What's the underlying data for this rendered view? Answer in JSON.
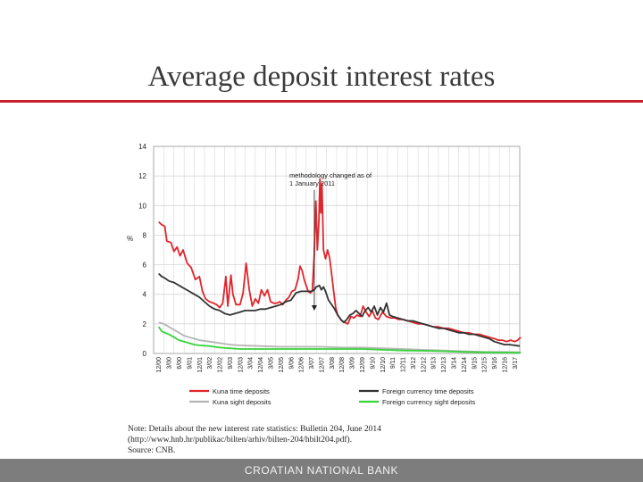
{
  "slide": {
    "title": "Average deposit interest rates",
    "footer": "CROATIAN NATIONAL BANK",
    "note_lines": [
      "Note: Details about the new interest rate statistics: Bulletin 204, June 2014",
      "(http://www.hnb.hr/publikac/bilten/arhiv/bilten-204/hbilt204.pdf).",
      "Source: CNB."
    ]
  },
  "colors": {
    "kuna_time": "#e0262c",
    "foreign_time": "#333333",
    "kuna_sight": "#b5b5b5",
    "foreign_sight": "#35d43a",
    "title_rule": "#c8202b",
    "footer_bar": "#7d7d7d"
  },
  "chart_data": {
    "type": "line",
    "ylabel": "%",
    "ylim": [
      0,
      14
    ],
    "y_ticks": [
      "0",
      "2",
      "4",
      "6",
      "8",
      "10",
      "12",
      "14"
    ],
    "grid": true,
    "x_tick_labels": [
      "12/00",
      "3/00",
      "6/00",
      "9/01",
      "12/01",
      "3/02",
      "12/02",
      "9/03",
      "12/03",
      "3/04",
      "12/04",
      "3/05",
      "12/05",
      "9/06",
      "12/06",
      "3/07",
      "12/07",
      "3/08",
      "12/08",
      "3/09",
      "12/09",
      "9/10",
      "12/10",
      "9/11",
      "12/11",
      "3/12",
      "12/12",
      "9/13",
      "12/13",
      "3/14",
      "12/14",
      "9/15",
      "12/15",
      "9/16",
      "12/16",
      "3/17"
    ],
    "annotation": {
      "lines": [
        "methodology changed as of",
        "1 January 2011"
      ],
      "x_index": 15.3,
      "y": 2.9
    },
    "legend_position": "bottom",
    "series": [
      {
        "name": "Kuna time deposits",
        "color_key": "kuna_time",
        "points": [
          [
            0,
            8.9
          ],
          [
            0.3,
            8.7
          ],
          [
            0.6,
            8.6
          ],
          [
            0.8,
            7.6
          ],
          [
            1.2,
            7.5
          ],
          [
            1.5,
            6.9
          ],
          [
            1.8,
            7.2
          ],
          [
            2.1,
            6.6
          ],
          [
            2.4,
            7
          ],
          [
            2.8,
            6.1
          ],
          [
            3.2,
            5.8
          ],
          [
            3.6,
            5
          ],
          [
            4,
            5.2
          ],
          [
            4.3,
            4.2
          ],
          [
            4.6,
            3.7
          ],
          [
            5,
            3.5
          ],
          [
            5.4,
            3.4
          ],
          [
            5.7,
            3.3
          ],
          [
            6,
            3.1
          ],
          [
            6.3,
            3.4
          ],
          [
            6.6,
            5.2
          ],
          [
            6.8,
            3.2
          ],
          [
            7.1,
            5.3
          ],
          [
            7.3,
            4
          ],
          [
            7.6,
            3.3
          ],
          [
            8,
            3.3
          ],
          [
            8.3,
            4.1
          ],
          [
            8.6,
            6.1
          ],
          [
            8.9,
            4.3
          ],
          [
            9.2,
            3.2
          ],
          [
            9.5,
            3.7
          ],
          [
            9.8,
            3.4
          ],
          [
            10.1,
            4.3
          ],
          [
            10.4,
            3.9
          ],
          [
            10.7,
            4.3
          ],
          [
            11,
            3.5
          ],
          [
            11.3,
            3.4
          ],
          [
            11.6,
            3.4
          ],
          [
            11.9,
            3.5
          ],
          [
            12.2,
            3.3
          ],
          [
            12.5,
            3.6
          ],
          [
            12.8,
            3.8
          ],
          [
            13.1,
            4.2
          ],
          [
            13.4,
            4.3
          ],
          [
            13.7,
            5
          ],
          [
            13.9,
            5.9
          ],
          [
            14.1,
            5.6
          ],
          [
            14.3,
            5
          ],
          [
            14.5,
            4.6
          ],
          [
            14.7,
            4.2
          ],
          [
            14.9,
            4.1
          ],
          [
            15.1,
            4.2
          ],
          [
            15.3,
            6.7
          ],
          [
            15.45,
            10.3
          ],
          [
            15.6,
            7
          ],
          [
            15.75,
            9
          ],
          [
            15.85,
            11.8
          ],
          [
            15.95,
            9.5
          ],
          [
            16.05,
            11.5
          ],
          [
            16.2,
            7
          ],
          [
            16.4,
            6.4
          ],
          [
            16.6,
            7
          ],
          [
            16.8,
            6.5
          ],
          [
            17,
            5.4
          ],
          [
            17.2,
            4.2
          ],
          [
            17.4,
            3.1
          ],
          [
            17.6,
            2.6
          ],
          [
            17.8,
            2.4
          ],
          [
            18,
            2.2
          ],
          [
            18.3,
            2.1
          ],
          [
            18.6,
            2
          ],
          [
            18.9,
            2.5
          ],
          [
            19.2,
            2.4
          ],
          [
            19.5,
            2.6
          ],
          [
            19.8,
            2.5
          ],
          [
            20.1,
            3.2
          ],
          [
            20.4,
            2.8
          ],
          [
            20.7,
            2.5
          ],
          [
            21,
            2.9
          ],
          [
            21.3,
            2.4
          ],
          [
            21.6,
            2.3
          ],
          [
            22,
            2.8
          ],
          [
            22.4,
            2.5
          ],
          [
            22.8,
            2.4
          ],
          [
            23.2,
            2.4
          ],
          [
            23.6,
            2.3
          ],
          [
            24,
            2.3
          ],
          [
            24.5,
            2.2
          ],
          [
            25,
            2.1
          ],
          [
            25.5,
            2
          ],
          [
            26,
            2
          ],
          [
            26.5,
            1.9
          ],
          [
            27,
            1.8
          ],
          [
            27.5,
            1.8
          ],
          [
            28,
            1.7
          ],
          [
            28.5,
            1.7
          ],
          [
            29,
            1.6
          ],
          [
            29.5,
            1.5
          ],
          [
            30,
            1.4
          ],
          [
            30.5,
            1.4
          ],
          [
            31,
            1.3
          ],
          [
            31.5,
            1.3
          ],
          [
            32,
            1.2
          ],
          [
            32.5,
            1.1
          ],
          [
            33,
            1
          ],
          [
            33.4,
            0.9
          ],
          [
            33.8,
            0.9
          ],
          [
            34.2,
            0.8
          ],
          [
            34.6,
            0.9
          ],
          [
            35,
            0.8
          ],
          [
            35.3,
            0.9
          ],
          [
            35.6,
            1.1
          ]
        ]
      },
      {
        "name": "Foreign currency time deposits",
        "color_key": "foreign_time",
        "points": [
          [
            0,
            5.4
          ],
          [
            0.3,
            5.2
          ],
          [
            0.6,
            5.1
          ],
          [
            1,
            4.9
          ],
          [
            1.5,
            4.8
          ],
          [
            2,
            4.6
          ],
          [
            2.5,
            4.4
          ],
          [
            3,
            4.2
          ],
          [
            3.5,
            4
          ],
          [
            4,
            3.8
          ],
          [
            4.5,
            3.5
          ],
          [
            5,
            3.2
          ],
          [
            5.5,
            3
          ],
          [
            6,
            2.9
          ],
          [
            6.5,
            2.7
          ],
          [
            7,
            2.6
          ],
          [
            7.5,
            2.7
          ],
          [
            8,
            2.8
          ],
          [
            8.5,
            2.9
          ],
          [
            9,
            2.9
          ],
          [
            9.5,
            2.9
          ],
          [
            10,
            3
          ],
          [
            10.5,
            3
          ],
          [
            11,
            3.1
          ],
          [
            11.5,
            3.2
          ],
          [
            12,
            3.3
          ],
          [
            12.5,
            3.5
          ],
          [
            13,
            3.6
          ],
          [
            13.5,
            4.1
          ],
          [
            14,
            4.2
          ],
          [
            14.5,
            4.2
          ],
          [
            15,
            4.2
          ],
          [
            15.3,
            4.3
          ],
          [
            15.5,
            4.5
          ],
          [
            15.8,
            4.6
          ],
          [
            16,
            4.3
          ],
          [
            16.2,
            4.5
          ],
          [
            16.4,
            4.2
          ],
          [
            16.7,
            3.6
          ],
          [
            17,
            3.3
          ],
          [
            17.3,
            3
          ],
          [
            17.6,
            2.6
          ],
          [
            17.9,
            2.3
          ],
          [
            18.2,
            2.1
          ],
          [
            18.5,
            2.3
          ],
          [
            18.8,
            2.6
          ],
          [
            19.1,
            2.7
          ],
          [
            19.4,
            2.9
          ],
          [
            19.7,
            2.7
          ],
          [
            20,
            2.5
          ],
          [
            20.3,
            2.9
          ],
          [
            20.6,
            3.1
          ],
          [
            20.9,
            2.8
          ],
          [
            21.2,
            3.2
          ],
          [
            21.5,
            2.6
          ],
          [
            21.8,
            3.1
          ],
          [
            22.1,
            2.8
          ],
          [
            22.4,
            3.4
          ],
          [
            22.7,
            2.6
          ],
          [
            23,
            2.5
          ],
          [
            23.5,
            2.4
          ],
          [
            24,
            2.3
          ],
          [
            24.5,
            2.2
          ],
          [
            25,
            2.2
          ],
          [
            25.5,
            2.1
          ],
          [
            26,
            2
          ],
          [
            26.5,
            1.9
          ],
          [
            27,
            1.8
          ],
          [
            27.5,
            1.7
          ],
          [
            28,
            1.7
          ],
          [
            28.5,
            1.6
          ],
          [
            29,
            1.5
          ],
          [
            29.5,
            1.4
          ],
          [
            30,
            1.4
          ],
          [
            30.5,
            1.3
          ],
          [
            31,
            1.3
          ],
          [
            31.5,
            1.2
          ],
          [
            32,
            1.1
          ],
          [
            32.5,
            1
          ],
          [
            33,
            0.8
          ],
          [
            33.5,
            0.7
          ],
          [
            34,
            0.6
          ],
          [
            34.5,
            0.6
          ],
          [
            35,
            0.55
          ],
          [
            35.5,
            0.5
          ]
        ]
      },
      {
        "name": "Kuna sight deposits",
        "color_key": "kuna_sight",
        "points": [
          [
            0,
            2.1
          ],
          [
            0.5,
            2
          ],
          [
            1,
            1.8
          ],
          [
            1.5,
            1.6
          ],
          [
            2,
            1.4
          ],
          [
            2.5,
            1.2
          ],
          [
            3,
            1.1
          ],
          [
            3.5,
            1
          ],
          [
            4,
            0.9
          ],
          [
            5,
            0.8
          ],
          [
            6,
            0.7
          ],
          [
            7,
            0.6
          ],
          [
            8,
            0.55
          ],
          [
            10,
            0.5
          ],
          [
            12,
            0.45
          ],
          [
            14,
            0.45
          ],
          [
            16,
            0.45
          ],
          [
            18,
            0.4
          ],
          [
            20,
            0.4
          ],
          [
            22,
            0.35
          ],
          [
            24,
            0.3
          ],
          [
            26,
            0.25
          ],
          [
            28,
            0.2
          ],
          [
            30,
            0.15
          ],
          [
            32,
            0.1
          ],
          [
            34,
            0.1
          ],
          [
            35.6,
            0.08
          ]
        ]
      },
      {
        "name": "Foreign currency sight deposits",
        "color_key": "foreign_sight",
        "points": [
          [
            0,
            1.8
          ],
          [
            0.3,
            1.5
          ],
          [
            0.6,
            1.4
          ],
          [
            1,
            1.3
          ],
          [
            1.5,
            1.1
          ],
          [
            2,
            0.9
          ],
          [
            2.5,
            0.8
          ],
          [
            3,
            0.7
          ],
          [
            3.5,
            0.6
          ],
          [
            4,
            0.55
          ],
          [
            5,
            0.5
          ],
          [
            6,
            0.4
          ],
          [
            7,
            0.35
          ],
          [
            8,
            0.3
          ],
          [
            10,
            0.3
          ],
          [
            12,
            0.3
          ],
          [
            14,
            0.3
          ],
          [
            16,
            0.3
          ],
          [
            18,
            0.3
          ],
          [
            20,
            0.3
          ],
          [
            22,
            0.25
          ],
          [
            24,
            0.2
          ],
          [
            26,
            0.18
          ],
          [
            28,
            0.15
          ],
          [
            30,
            0.1
          ],
          [
            32,
            0.08
          ],
          [
            34,
            0.06
          ],
          [
            35.6,
            0.05
          ]
        ]
      }
    ]
  }
}
